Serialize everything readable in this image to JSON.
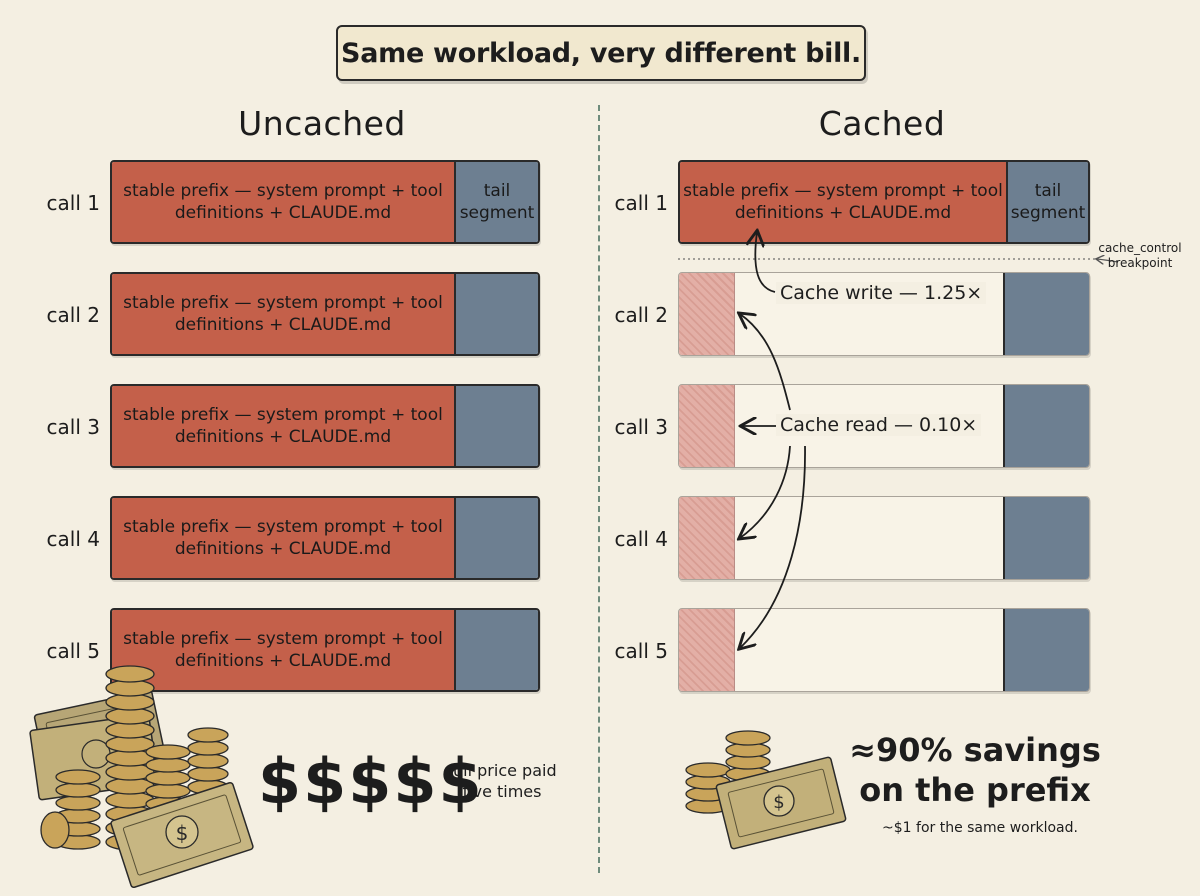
{
  "title": "Same workload, very different bill.",
  "left": {
    "heading": "Uncached",
    "rows": [
      {
        "label": "call 1",
        "prefix_text": "stable prefix — system prompt + tool definitions + CLAUDE.md",
        "tail_text": "tail segment"
      },
      {
        "label": "call 2",
        "prefix_text": "stable prefix — system prompt + tool definitions + CLAUDE.md",
        "tail_text": ""
      },
      {
        "label": "call 3",
        "prefix_text": "stable prefix — system prompt + tool definitions + CLAUDE.md",
        "tail_text": ""
      },
      {
        "label": "call 4",
        "prefix_text": "stable prefix — system prompt + tool definitions + CLAUDE.md",
        "tail_text": ""
      },
      {
        "label": "call 5",
        "prefix_text": "stable prefix — system prompt + tool definitions + CLAUDE.md",
        "tail_text": ""
      }
    ],
    "cost_symbol": "$$$$$",
    "cost_note": "full price paid five times"
  },
  "right": {
    "heading": "Cached",
    "rows": [
      {
        "label": "call 1",
        "prefix_text": "stable prefix — system prompt + tool definitions + CLAUDE.md",
        "tail_text": "tail segment"
      },
      {
        "label": "call 2"
      },
      {
        "label": "call 3"
      },
      {
        "label": "call 4"
      },
      {
        "label": "call 5"
      }
    ],
    "breakpoint_note": "cache_control breakpoint",
    "cache_write_note": "Cache write — 1.25×",
    "cache_read_note": "Cache read — 0.10×",
    "savings_headline": "≈90% savings on the prefix",
    "savings_note": "~$1 for the same workload."
  },
  "colors": {
    "background": "#f4efe2",
    "prefix": "#c4604a",
    "tail": "#6d7f91",
    "cached_prefix": "#e3afa6",
    "coin": "#c9a45a",
    "bill": "#c2b07a"
  },
  "icons": [
    "coin-stack-icon",
    "banknote-icon",
    "dollar-sign-icon"
  ]
}
